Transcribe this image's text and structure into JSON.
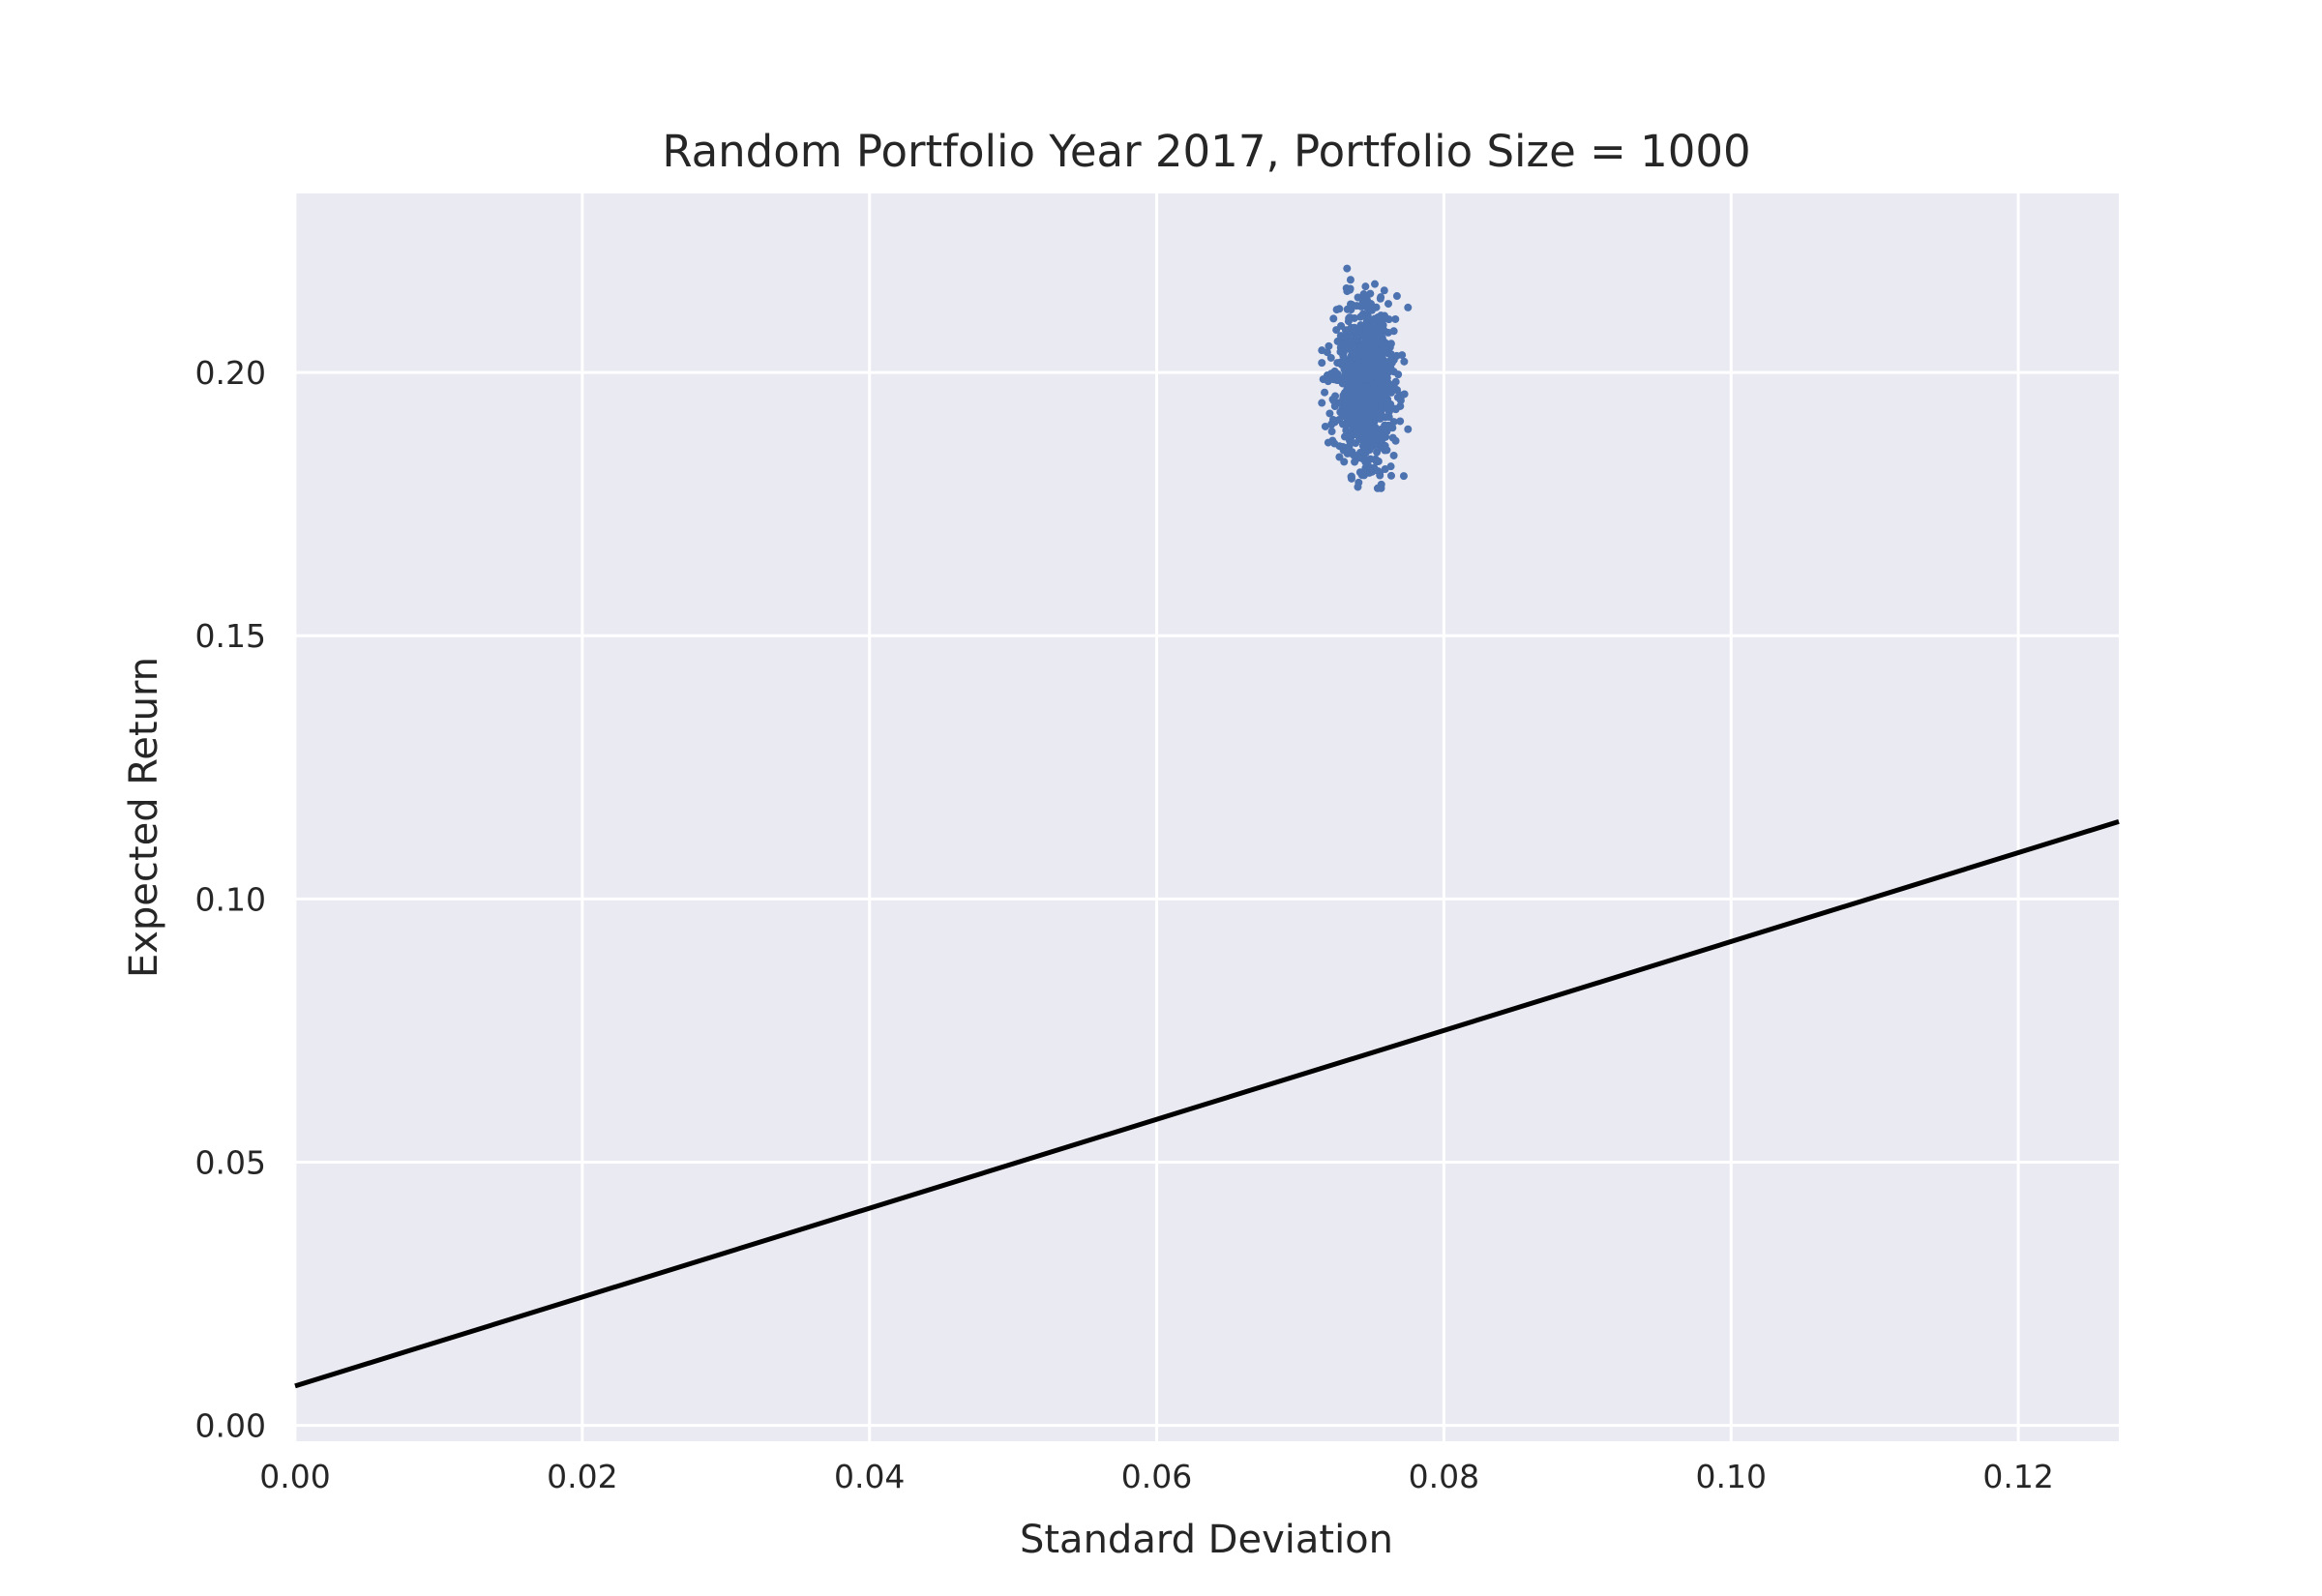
{
  "chart_data": {
    "type": "scatter",
    "title": "Random Portfolio Year 2017, Portfolio Size = 1000",
    "xlabel": "Standard Deviation",
    "ylabel": "Expected Return",
    "xlim": [
      0.0,
      0.127
    ],
    "ylim": [
      -0.003,
      0.234
    ],
    "x_ticks": [
      "0.00",
      "0.02",
      "0.04",
      "0.06",
      "0.08",
      "0.10",
      "0.12"
    ],
    "y_ticks": [
      "0.00",
      "0.05",
      "0.10",
      "0.15",
      "0.20"
    ],
    "grid": true,
    "background_color": "#eaeaf2",
    "grid_color": "#ffffff",
    "series": [
      {
        "kind": "scatter",
        "color": "#4c72b0",
        "points": 1000,
        "cluster_center": [
          0.0745,
          0.198
        ],
        "std_x_range": [
          0.0715,
          0.0775
        ],
        "return_range": [
          0.178,
          0.221
        ]
      },
      {
        "kind": "line",
        "color": "#000000",
        "x": [
          0.0,
          0.127
        ],
        "y": [
          0.0075,
          0.1147
        ]
      }
    ]
  }
}
